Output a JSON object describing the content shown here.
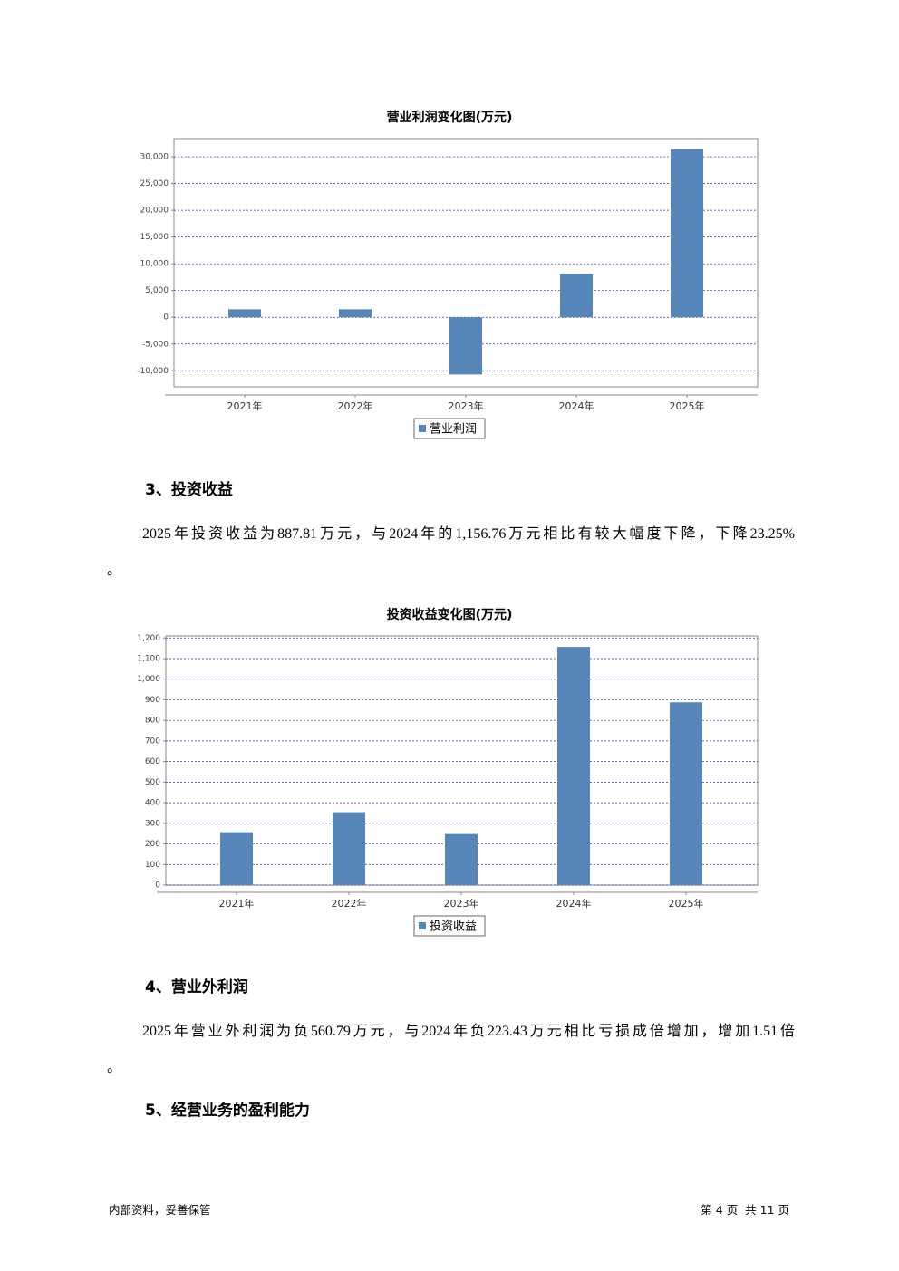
{
  "chart_data": [
    {
      "type": "bar",
      "title": "营业利润变化图(万元)",
      "categories": [
        "2021年",
        "2022年",
        "2023年",
        "2024年",
        "2025年"
      ],
      "series": [
        {
          "name": "营业利润",
          "color": "#5585b9",
          "values": [
            1500,
            1500,
            -10700,
            8100,
            31400
          ]
        }
      ],
      "ylim": [
        -13000,
        33400
      ],
      "yticks": [
        {
          "value": -10000,
          "label": "-10,000"
        },
        {
          "value": -5000,
          "label": "-5,000"
        },
        0,
        {
          "value": 5000,
          "label": "5,000"
        },
        {
          "value": 10000,
          "label": "10,000"
        },
        {
          "value": 15000,
          "label": "15,000"
        },
        {
          "value": 20000,
          "label": "20,000"
        },
        {
          "value": 25000,
          "label": "25,000"
        },
        {
          "value": 30000,
          "label": "30,000"
        }
      ],
      "grid": true,
      "legend": "bottom"
    },
    {
      "type": "bar",
      "title": "投资收益变化图(万元)",
      "categories": [
        "2021年",
        "2022年",
        "2023年",
        "2024年",
        "2025年"
      ],
      "series": [
        {
          "name": "投资收益",
          "color": "#5585b9",
          "values": [
            257,
            354,
            248,
            1156.76,
            887.81
          ]
        }
      ],
      "ylim": [
        0,
        1210
      ],
      "yticks": [
        0,
        100,
        200,
        300,
        400,
        500,
        600,
        700,
        800,
        900,
        {
          "value": 1000,
          "label": "1,000"
        },
        {
          "value": 1100,
          "label": "1,100"
        },
        {
          "value": 1200,
          "label": "1,200"
        }
      ],
      "grid": true,
      "legend": "bottom"
    }
  ],
  "sections": [
    {
      "heading": "3、投资收益",
      "lines": [
        "2025年投资收益为887.81万元，与2024年的1,156.76万元相比有较大幅度下降，下降23.25%",
        "。"
      ]
    },
    {
      "heading": "4、营业外利润",
      "lines": [
        "2025年营业外利润为负560.79万元，与2024年负223.43万元相比亏损成倍增加，增加1.51倍",
        "。"
      ]
    },
    {
      "heading": "5、经营业务的盈利能力"
    }
  ],
  "footer": {
    "left": "内部资料，妥善保管",
    "right": "第 4 页  共 11 页"
  }
}
